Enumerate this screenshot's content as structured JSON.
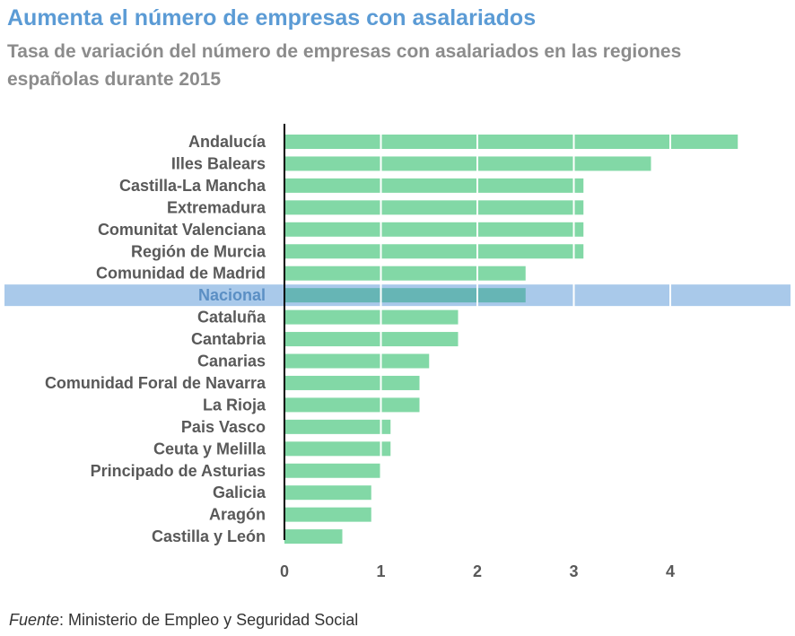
{
  "chart_data": {
    "type": "bar",
    "orientation": "horizontal",
    "title": "Aumenta el número de empresas con asalariados",
    "subtitle": "Tasa de variación del número de empresas con asalariados en las regiones españolas durante 2015",
    "categories": [
      "Andalucía",
      "Illes Balears",
      "Castilla-La Mancha",
      "Extremadura",
      "Comunitat Valenciana",
      "Región de Murcia",
      "Comunidad de Madrid",
      "Nacional",
      "Cataluña",
      "Cantabria",
      "Canarias",
      "Comunidad Foral de Navarra",
      "La Rioja",
      "Pais Vasco",
      "Ceuta y Melilla",
      "Principado de Asturias",
      "Galicia",
      "Aragón",
      "Castilla y León"
    ],
    "values": [
      4.7,
      3.8,
      3.1,
      3.1,
      3.1,
      3.1,
      2.5,
      2.5,
      1.8,
      1.8,
      1.5,
      1.4,
      1.4,
      1.1,
      1.1,
      1.0,
      0.9,
      0.9,
      0.6
    ],
    "highlighted_category": "Nacional",
    "xticks": [
      0,
      1,
      2,
      3,
      4
    ],
    "xlim": [
      0,
      5
    ],
    "grid": true,
    "colors": {
      "bar": "#82d8a6",
      "highlight_band": "#a9c9ea",
      "highlight_bar": "#66b5b5",
      "highlight_label": "#5b8fc4",
      "grid": "#ffffff",
      "axis": "#000000"
    }
  },
  "source": {
    "label": "Fuente",
    "text": ": Ministerio de Empleo y Seguridad Social"
  }
}
